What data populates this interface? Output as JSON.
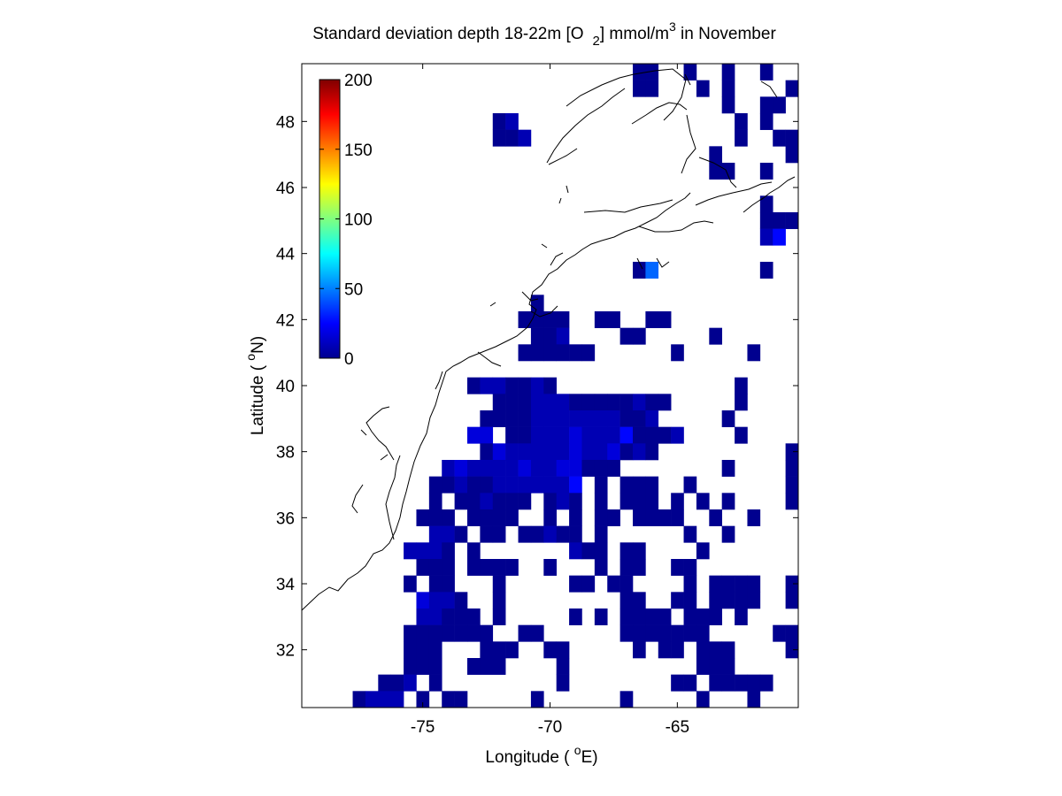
{
  "title": {
    "prefix": "Standard deviation depth 18-22m [O",
    "subscript": "2",
    "middle": "] mmol/m",
    "superscript": "3",
    "suffix": " in November"
  },
  "x_axis": {
    "label_prefix": "Longitude ( ",
    "label_degree": "o",
    "label_suffix": "E)",
    "range": [
      -79.75,
      -60.25
    ],
    "ticks": [
      -75,
      -70,
      -65
    ],
    "tick_labels": [
      "-75",
      "-70",
      "-65"
    ]
  },
  "y_axis": {
    "label_prefix": "Latitude ( ",
    "label_degree": "o",
    "label_suffix": "N)",
    "range": [
      30.25,
      49.75
    ],
    "ticks": [
      32,
      34,
      36,
      38,
      40,
      42,
      44,
      46,
      48
    ],
    "tick_labels": [
      "32",
      "34",
      "36",
      "38",
      "40",
      "42",
      "44",
      "46",
      "48"
    ]
  },
  "colorbar": {
    "colormap": "jet",
    "range": [
      0,
      200
    ],
    "ticks": [
      0,
      50,
      100,
      150,
      200
    ],
    "tick_labels": [
      "0",
      "50",
      "100",
      "150",
      "200"
    ]
  },
  "chart_data": {
    "type": "heatmap",
    "variable": "Standard deviation of O2 at 18-22m depth, November",
    "units": "mmol/m^3",
    "cell_size_deg": 0.5,
    "value_range": [
      0,
      200
    ],
    "levels": {
      "a": 3,
      "b": 10,
      "c": 18,
      "d": 26,
      "e": 45
    },
    "grid_origin": {
      "lon_west_edge": -79.75,
      "lat_north_edge": 49.75
    },
    "rows": [
      "..........................aa..a..a..a..a",
      "..........................aa...a.a....a.",
      ".................................a..aa.a.",
      "...............ab.................a.a..a.",
      "...............aab................a..aaa.",
      "................................a.....a..",
      "................................aa..a..aa",
      "........................................a",
      "....................................a....",
      "....................................aaa..",
      "....................................bd.a.",
      "................................................",
      "..........................ae........a.......a",
      "..............................................a",
      "..................a.......................a.aa.",
      ".................aaaa..aa..aa..............a.aa",
      "..................aab....aa.....a.......a.......a",
      ".................aaaaaa......a.....a..........a",
      "...........................................a",
      ".............abbaaba..............a.........a",
      "...............aaabbbaaaaabaa.....a......a.......a",
      "..............aaaabbbbbbbaab.....a......a.......a",
      ".............cc.aabbbcbbbdaaab....a..............a",
      "..............acbbbbbcbbcaba..........a..a.......a",
      "...........bcbbbbcbbccaaa........a....a.a.......a",
      "..........aabaabbbbbbd.a.aaa..a.......a..........",
      "..........a.aabaaa.aba.a.aaa.a.a.a....a.........",
      ".........aaa.aaaa..a.a.aa.aaaa..a..a..........",
      "..........bba.aa.aabaa.a......a..a...........a",
      "........bbba.a.......baa.aa....a...........a..",
      ".........aaa.aaaa..a...a.aa..aa...........a....",
      "........a.aa...a.....aa.aa....a.aaaa..aa..a....a",
      ".........cbba..a.........aa..aa.aaaa..aa.a.a....",
      ".........bbaaa.a.....a.a.aaaa.aaa.a....a..aa.a..",
      "........aaaaaaa..aa......aaaaaaa.....aa...a.a.aa",
      "........aaa...aaa..aa.....a.aa.aaa....aa....a.a.",
      "........aaa..aaa....a..........aaa.......a...aaa",
      "......aab.a.........a........aa.aaaaa....a.....a",
      "....abbb.a.aa.....a......a.....a...a....a.....a",
      "....abbbbaa.a..........a..aa.aa...aa...aa.....a",
      "...aabbbaaa....a........a...............a.a...aa",
      "...aaaaaaaa.........aa.......a........a.......a",
      "..a.a..............aa...........a..a..........aa",
      "a.......a...aa......aa..aa..a..a.....d.........",
      "a........................a..a.a...aaab....a..aa",
      "aa...............................aaab.a......a.",
      "aa.......................aa........ab..b.......",
      "a.a.......................aa........aa.a.......",
      "aa....................a.........b....b.........",
      "aaa......................a......a.aa..........a"
    ]
  }
}
